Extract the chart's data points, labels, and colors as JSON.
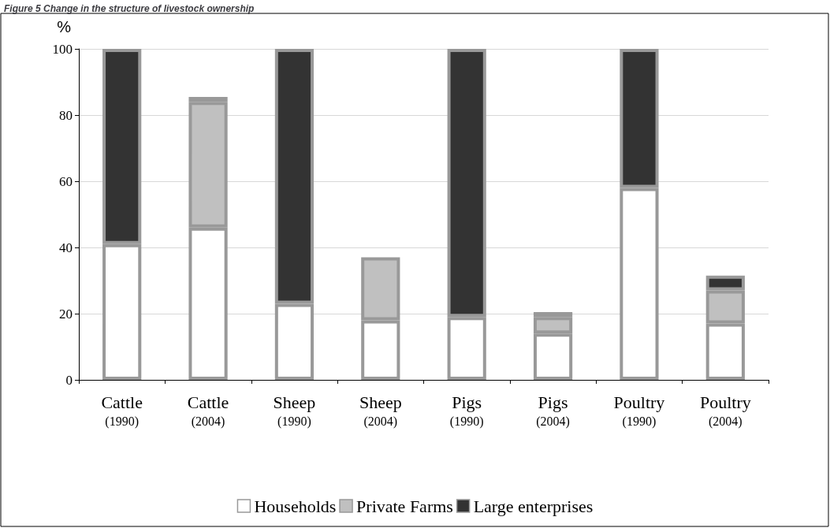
{
  "chart_data": {
    "type": "bar",
    "title": "Figure 5 Change in the structure of livestock ownership",
    "ylabel": "%",
    "categories": [
      "Cattle (1990)",
      "Cattle (2004)",
      "Sheep (1990)",
      "Sheep (2004)",
      "Pigs (1990)",
      "Pigs (2004)",
      "Poultry (1990)",
      "Poultry (2004)"
    ],
    "stacked": true,
    "series": [
      {
        "name": "Households",
        "color": "#ffffff",
        "values": [
          41,
          46,
          23,
          18,
          19,
          14,
          58,
          17
        ]
      },
      {
        "name": "Private Farms",
        "color": "#c0c0c0",
        "values": [
          null,
          38,
          null,
          19,
          null,
          5,
          null,
          10
        ]
      },
      {
        "name": "Large enterprises",
        "color": "#333333",
        "values": [
          59,
          1.5,
          77,
          null,
          81,
          1.5,
          42,
          4.5
        ]
      }
    ],
    "ylim": [
      0,
      100
    ],
    "yticks": [
      0,
      20,
      40,
      60,
      80,
      100
    ],
    "grid": "y",
    "legend": "bottom"
  }
}
